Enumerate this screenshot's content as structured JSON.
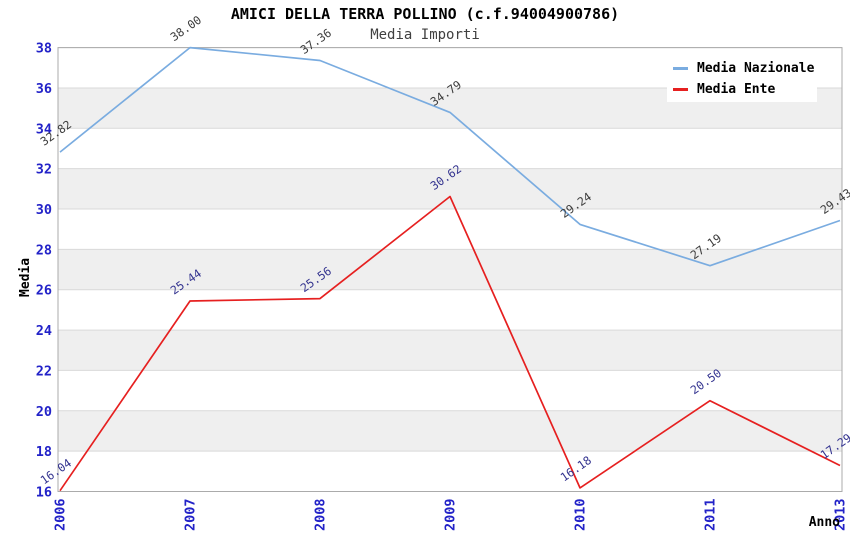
{
  "chart_data": {
    "type": "line",
    "title": "AMICI DELLA TERRA POLLINO (c.f.94004900786)",
    "subtitle": "Media Importi",
    "xlabel": "Anno",
    "ylabel": "Media",
    "categories": [
      "2006",
      "2007",
      "2008",
      "2009",
      "2010",
      "2011",
      "2013"
    ],
    "yticks": [
      16,
      18,
      20,
      22,
      24,
      26,
      28,
      30,
      32,
      34,
      36,
      38
    ],
    "ylim": [
      16,
      38
    ],
    "grid": "alternating-horizontal-bands",
    "legend_position": "top-right",
    "series": [
      {
        "name": "Media Nazionale",
        "color": "#7AACE0",
        "label_color": "#3C3C3C",
        "values": [
          32.82,
          38.0,
          37.36,
          34.79,
          29.24,
          27.19,
          29.43
        ],
        "value_labels": [
          "32.82",
          "38.00",
          "37.36",
          "34.79",
          "29.24",
          "27.19",
          "29.43"
        ]
      },
      {
        "name": "Media Ente",
        "color": "#E62020",
        "label_color": "#33338F",
        "values": [
          16.04,
          25.44,
          25.56,
          30.62,
          16.18,
          20.5,
          17.29
        ],
        "value_labels": [
          "16.04",
          "25.44",
          "25.56",
          "30.62",
          "16.18",
          "20.50",
          "17.29"
        ]
      }
    ],
    "colors": {
      "tick_label": "#2222C8",
      "band": "#EFEFEF",
      "grid_line": "#D9D9D9",
      "plot_border": "#ABABAB",
      "title": "#000000",
      "subtitle": "#404040",
      "axis_title": "#000000",
      "legend_text": "#000000",
      "legend_bg": "#FFFFFF"
    }
  }
}
